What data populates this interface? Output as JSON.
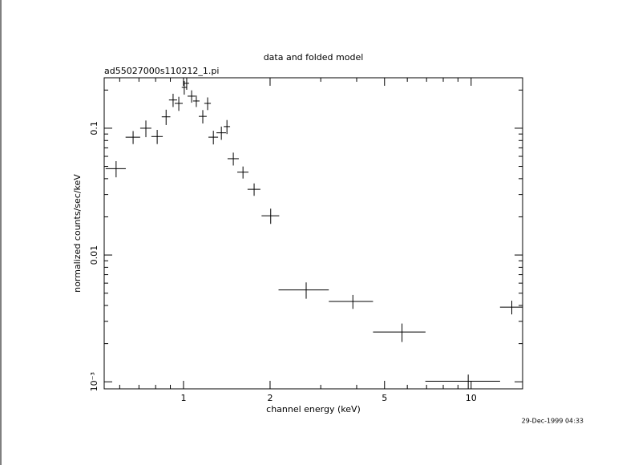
{
  "chart_data": {
    "type": "scatter",
    "title": "data and folded model",
    "subtitle": "ad55027000s110212_1.pi",
    "x_label": "channel energy (keV)",
    "y_label": "normalized counts/sec/keV",
    "timestamp": "29-Dec-1999 04:33",
    "xlog": true,
    "ylog": true,
    "color": "#000000",
    "xlim": [
      0.53,
      15.1
    ],
    "ylim": [
      0.00088,
      0.25
    ],
    "xticks": [
      1,
      2,
      5,
      10
    ],
    "xminor_ticks": [
      0.6,
      0.7,
      0.8,
      0.9,
      3,
      4,
      6,
      7,
      8,
      9
    ],
    "yticks": [
      0.1,
      0.01,
      {
        "value": 0.001,
        "label": "10⁻³"
      }
    ],
    "yminor_ticks": [
      0.002,
      0.003,
      0.004,
      0.005,
      0.006,
      0.007,
      0.008,
      0.009,
      0.02,
      0.03,
      0.04,
      0.05,
      0.06,
      0.07,
      0.08,
      0.09,
      0.2
    ],
    "points": {
      "x": [
        0.583,
        0.668,
        0.74,
        0.81,
        0.87,
        0.92,
        0.963,
        1.006,
        1.026,
        1.067,
        1.108,
        1.167,
        1.213,
        1.27,
        1.354,
        1.416,
        1.49,
        1.61,
        1.76,
        2.01,
        2.67,
        3.88,
        5.75,
        9.77,
        13.85
      ],
      "xerr": [
        0.047,
        0.039,
        0.033,
        0.037,
        0.03,
        0.03,
        0.031,
        0.02,
        0.02,
        0.034,
        0.029,
        0.037,
        0.032,
        0.049,
        0.052,
        0.036,
        0.067,
        0.072,
        0.09,
        0.142,
        0.53,
        0.68,
        1.19,
        2.84,
        1.25
      ],
      "y": [
        0.048,
        0.085,
        0.1,
        0.086,
        0.123,
        0.167,
        0.157,
        0.21,
        0.226,
        0.179,
        0.164,
        0.124,
        0.157,
        0.085,
        0.092,
        0.103,
        0.0575,
        0.045,
        0.033,
        0.0204,
        0.0053,
        0.0043,
        0.00247,
        0.00101,
        0.00388
      ],
      "yerr": [
        0.007,
        0.01,
        0.015,
        0.011,
        0.017,
        0.02,
        0.02,
        0.026,
        0.025,
        0.02,
        0.017,
        0.015,
        0.018,
        0.0105,
        0.011,
        0.013,
        0.0067,
        0.0049,
        0.0037,
        0.0028,
        0.00078,
        0.00054,
        0.00041,
        0.00013,
        0.00048
      ]
    }
  }
}
